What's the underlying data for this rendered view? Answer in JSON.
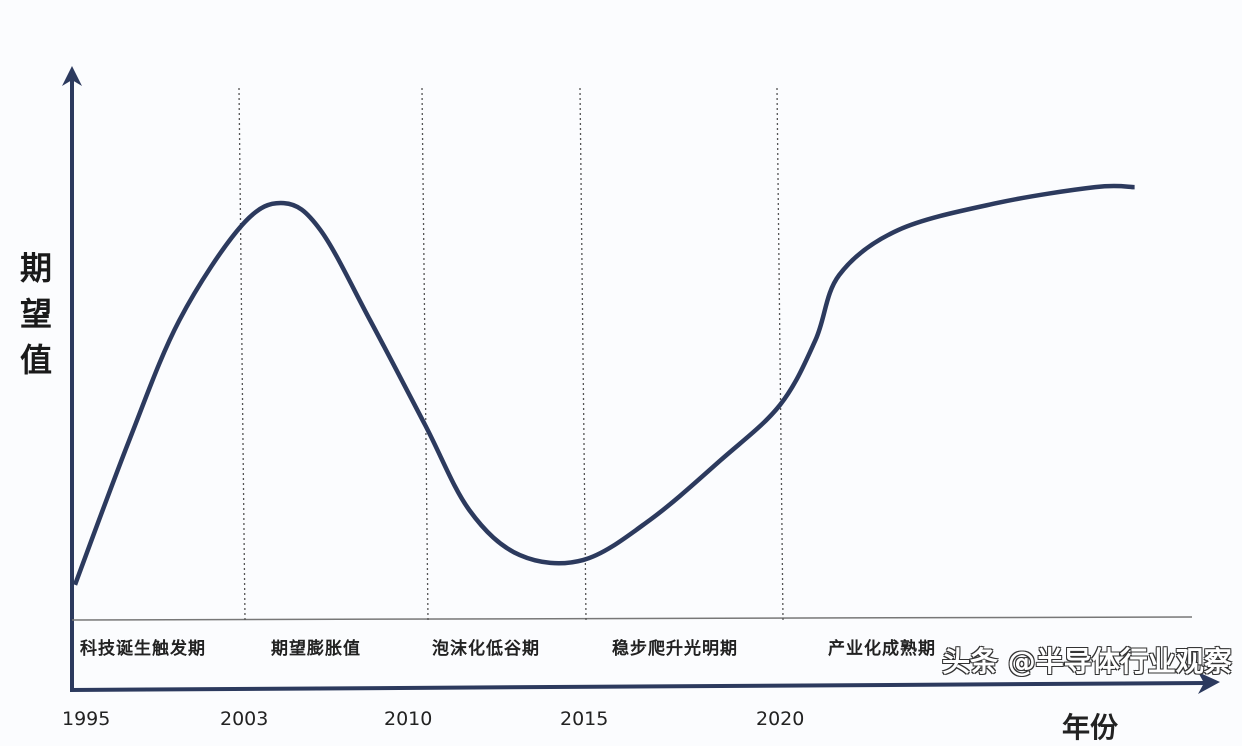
{
  "chart_data": {
    "type": "line",
    "title": "",
    "ylabel": "期望值",
    "xlabel": "年份",
    "x_ticks": [
      "1995",
      "2003",
      "2010",
      "2015",
      "2020"
    ],
    "phases": [
      "科技诞生触发期",
      "期望膨胀值",
      "泡沫化低谷期",
      "稳步爬升光明期",
      "产业化成熟期"
    ],
    "phase_boundaries": [
      2003,
      2010,
      2015,
      2020
    ],
    "series": [
      {
        "x": [
          1995,
          1997.6,
          2000.0,
          2003,
          2004.6,
          2006.0,
          2007.9,
          2010,
          2011.4,
          2013.0,
          2015,
          2016.7,
          2018.5,
          2020,
          2020.9,
          2021.5,
          2023.0,
          2025.5,
          2028.0,
          2029.0
        ],
        "y": [
          6.4,
          32.7,
          54.5,
          71.8,
          75.8,
          70.9,
          54.5,
          35.5,
          20,
          11.8,
          10.9,
          18.2,
          29.1,
          39.1,
          50.9,
          62.7,
          70.9,
          75.8,
          78.7,
          78.7
        ],
        "color": "#2c3a5e"
      }
    ],
    "grid": false,
    "legend": "none"
  },
  "watermark": "头条 @半导体行业观察"
}
